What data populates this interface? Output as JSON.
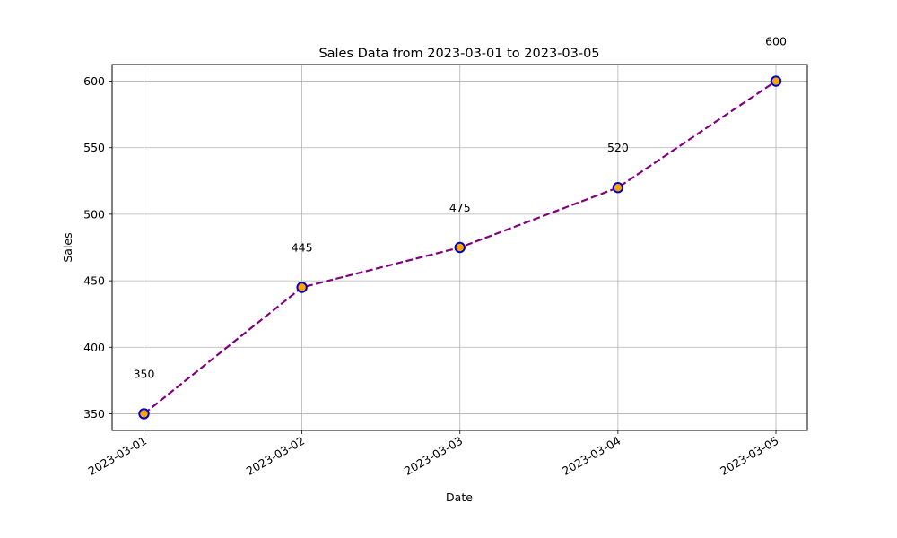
{
  "chart_data": {
    "type": "line",
    "title": "Sales Data from 2023-03-01 to 2023-03-05",
    "xlabel": "Date",
    "ylabel": "Sales",
    "x": [
      "2023-03-01",
      "2023-03-02",
      "2023-03-03",
      "2023-03-04",
      "2023-03-05"
    ],
    "series": [
      {
        "values": [
          350,
          445,
          475,
          520,
          600
        ]
      }
    ],
    "data_labels": [
      "350",
      "445",
      "475",
      "520",
      "600"
    ],
    "y_ticks": [
      350,
      400,
      450,
      500,
      550,
      600
    ],
    "ylim": [
      337.5,
      612.5
    ],
    "grid": true,
    "line_color": "#800080",
    "line_style": "dashed",
    "marker_face_color": "#ffa500",
    "marker_edge_color": "#0000cc"
  }
}
